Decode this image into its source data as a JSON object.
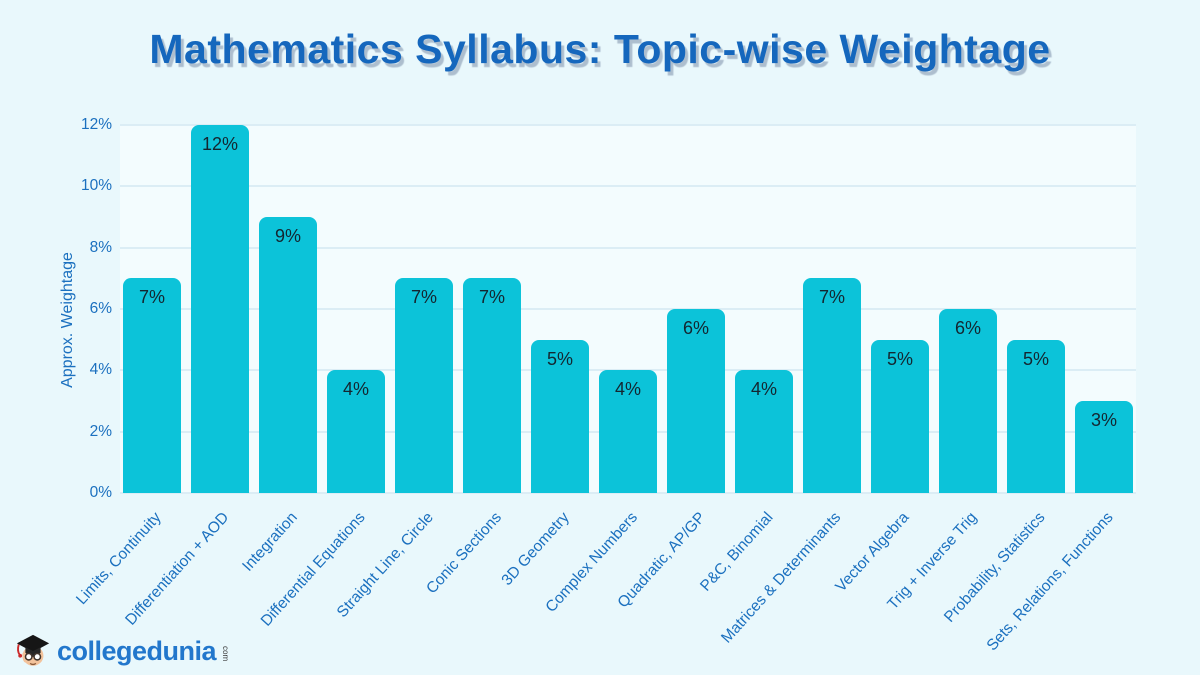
{
  "chart_data": {
    "type": "bar",
    "title": "Mathematics Syllabus: Topic-wise Weightage",
    "xlabel": "",
    "ylabel": "Approx. Weightage",
    "ylim": [
      0,
      12
    ],
    "yticks": [
      0,
      2,
      4,
      6,
      8,
      10,
      12
    ],
    "ytick_labels": [
      "0%",
      "2%",
      "4%",
      "6%",
      "8%",
      "10%",
      "12%"
    ],
    "grid": true,
    "legend": false,
    "categories": [
      "Limits, Continuity",
      "Differentiation + AOD",
      "Integration",
      "Differential Equations",
      "Straight Line, Circle",
      "Conic Sections",
      "3D Geometry",
      "Complex Numbers",
      "Quadratic, AP/GP",
      "P&C, Binomial",
      "Matrices & Determinants",
      "Vector Algebra",
      "Trig + Inverse Trig",
      "Probability, Statistics",
      "Sets, Relations, Functions"
    ],
    "values": [
      7,
      12,
      9,
      4,
      7,
      7,
      5,
      4,
      6,
      4,
      7,
      5,
      6,
      5,
      3
    ],
    "value_labels": [
      "7%",
      "12%",
      "9%",
      "4%",
      "7%",
      "7%",
      "5%",
      "4%",
      "6%",
      "4%",
      "7%",
      "5%",
      "6%",
      "5%",
      "3%"
    ],
    "colors": {
      "bar": "#0cc3d9",
      "grid": "#dbedf5",
      "plot_background": "#f3fcfe",
      "page_background": "#e9f8fc",
      "bar_label": "#142630",
      "axis_text": "#1b70bf",
      "title": "#1567bd"
    }
  },
  "logo": {
    "brand": "collegedunia",
    "tld": "com",
    "brand_color": "#2277cc"
  }
}
